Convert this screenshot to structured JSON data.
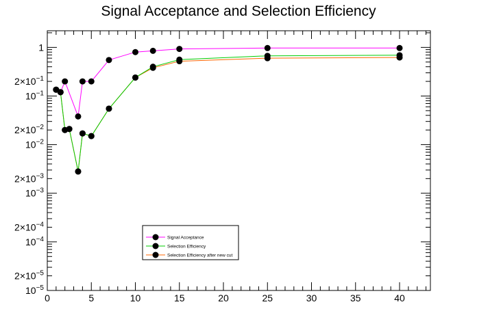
{
  "chart_data": {
    "type": "line",
    "title": "Signal Acceptance and Selection Efficiency",
    "xlabel": "",
    "ylabel": "",
    "xlim": [
      0,
      43.5
    ],
    "ylim": [
      1e-05,
      2.2
    ],
    "yscale": "log",
    "grid": false,
    "legend_position": "bottom-center",
    "x_tick_labels": [
      "0",
      "5",
      "10",
      "15",
      "20",
      "25",
      "30",
      "35",
      "40"
    ],
    "x_tick_values": [
      0,
      5,
      10,
      15,
      20,
      25,
      30,
      35,
      40
    ],
    "y_tick_labels": [
      {
        "value": 1e-05,
        "mantissa": "10",
        "exp": "−5"
      },
      {
        "value": 2e-05,
        "mantissa": "2×10",
        "exp": "−5"
      },
      {
        "value": 0.0001,
        "mantissa": "10",
        "exp": "−4"
      },
      {
        "value": 0.0002,
        "mantissa": "2×10",
        "exp": "−4"
      },
      {
        "value": 0.001,
        "mantissa": "10",
        "exp": "−3"
      },
      {
        "value": 0.002,
        "mantissa": "2×10",
        "exp": "−3"
      },
      {
        "value": 0.01,
        "mantissa": "10",
        "exp": "−2"
      },
      {
        "value": 0.02,
        "mantissa": "2×10",
        "exp": "−2"
      },
      {
        "value": 0.1,
        "mantissa": "10",
        "exp": "−1"
      },
      {
        "value": 0.2,
        "mantissa": "2×10",
        "exp": "−1"
      },
      {
        "value": 1,
        "mantissa": "1",
        "exp": ""
      }
    ],
    "series": [
      {
        "name": "Signal Acceptance",
        "color": "#ff00ff",
        "x": [
          1,
          1.5,
          2,
          3.5,
          4,
          5,
          7,
          10,
          12,
          15,
          25,
          40
        ],
        "y": [
          0.135,
          0.12,
          0.2,
          0.038,
          0.2,
          0.2,
          0.55,
          0.8,
          0.85,
          0.93,
          0.97,
          0.97
        ]
      },
      {
        "name": "Selection Efficiency",
        "color": "#00cc00",
        "x": [
          1,
          1.5,
          2,
          2.5,
          3.5,
          4,
          5,
          7,
          10,
          12,
          15,
          25,
          40
        ],
        "y": [
          0.135,
          0.12,
          0.02,
          0.021,
          0.0028,
          0.017,
          0.015,
          0.055,
          0.24,
          0.4,
          0.56,
          0.67,
          0.69
        ]
      },
      {
        "name": "Selection Efficiency after new cut",
        "color": "#ff6600",
        "x": [
          1,
          1.5,
          2,
          2.5,
          3.5,
          4,
          5,
          7,
          10,
          12,
          15,
          25,
          40
        ],
        "y": [
          0.135,
          0.12,
          0.02,
          0.021,
          0.0028,
          0.017,
          0.015,
          0.055,
          0.24,
          0.38,
          0.52,
          0.6,
          0.62
        ]
      }
    ]
  }
}
